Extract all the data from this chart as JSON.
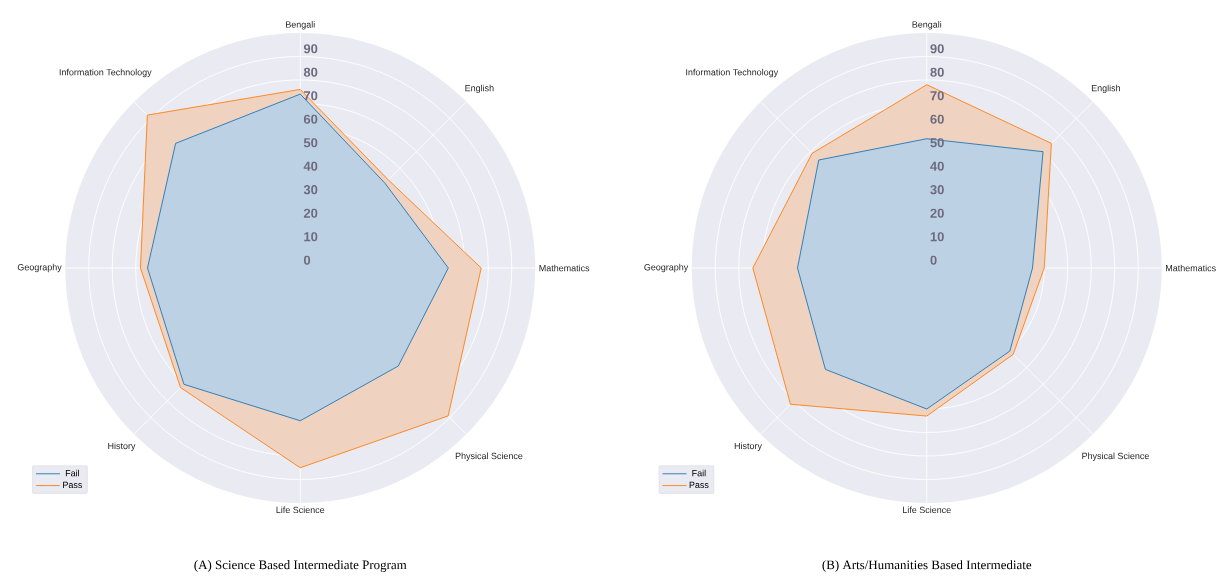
{
  "chart_data": [
    {
      "type": "radar",
      "title": "(A) Science Based Intermediate Program",
      "categories": [
        "Bengali",
        "English",
        "Mathematics",
        "Physical Science",
        "Life Science",
        "History",
        "Geography",
        "Information Technology"
      ],
      "series": [
        {
          "name": "Fail",
          "color": "#1f77b4",
          "values": [
            74,
            51,
            63,
            59,
            65,
            70,
            65,
            75
          ]
        },
        {
          "name": "Pass",
          "color": "#ff7f0e",
          "values": [
            76,
            53,
            77,
            89,
            85,
            72,
            68,
            92
          ]
        }
      ],
      "ylim": [
        0,
        100
      ],
      "yticks": [
        0,
        10,
        20,
        30,
        40,
        50,
        60,
        70,
        80,
        90
      ],
      "grid": true,
      "legend": "bottom left"
    },
    {
      "type": "radar",
      "title": "(B) Arts/Humanities Based Intermediate",
      "categories": [
        "Bengali",
        "English",
        "Mathematics",
        "Physical Science",
        "Life Science",
        "History",
        "Geography",
        "Information Technology"
      ],
      "series": [
        {
          "name": "Fail",
          "color": "#1f77b4",
          "values": [
            55,
            70,
            45,
            50,
            60,
            61,
            55,
            65
          ]
        },
        {
          "name": "Pass",
          "color": "#ff7f0e",
          "values": [
            78,
            75,
            50,
            52,
            63,
            82,
            74,
            69
          ]
        }
      ],
      "ylim": [
        0,
        100
      ],
      "yticks": [
        0,
        10,
        20,
        30,
        40,
        50,
        60,
        70,
        80,
        90
      ],
      "grid": true,
      "legend": "bottom left"
    }
  ]
}
